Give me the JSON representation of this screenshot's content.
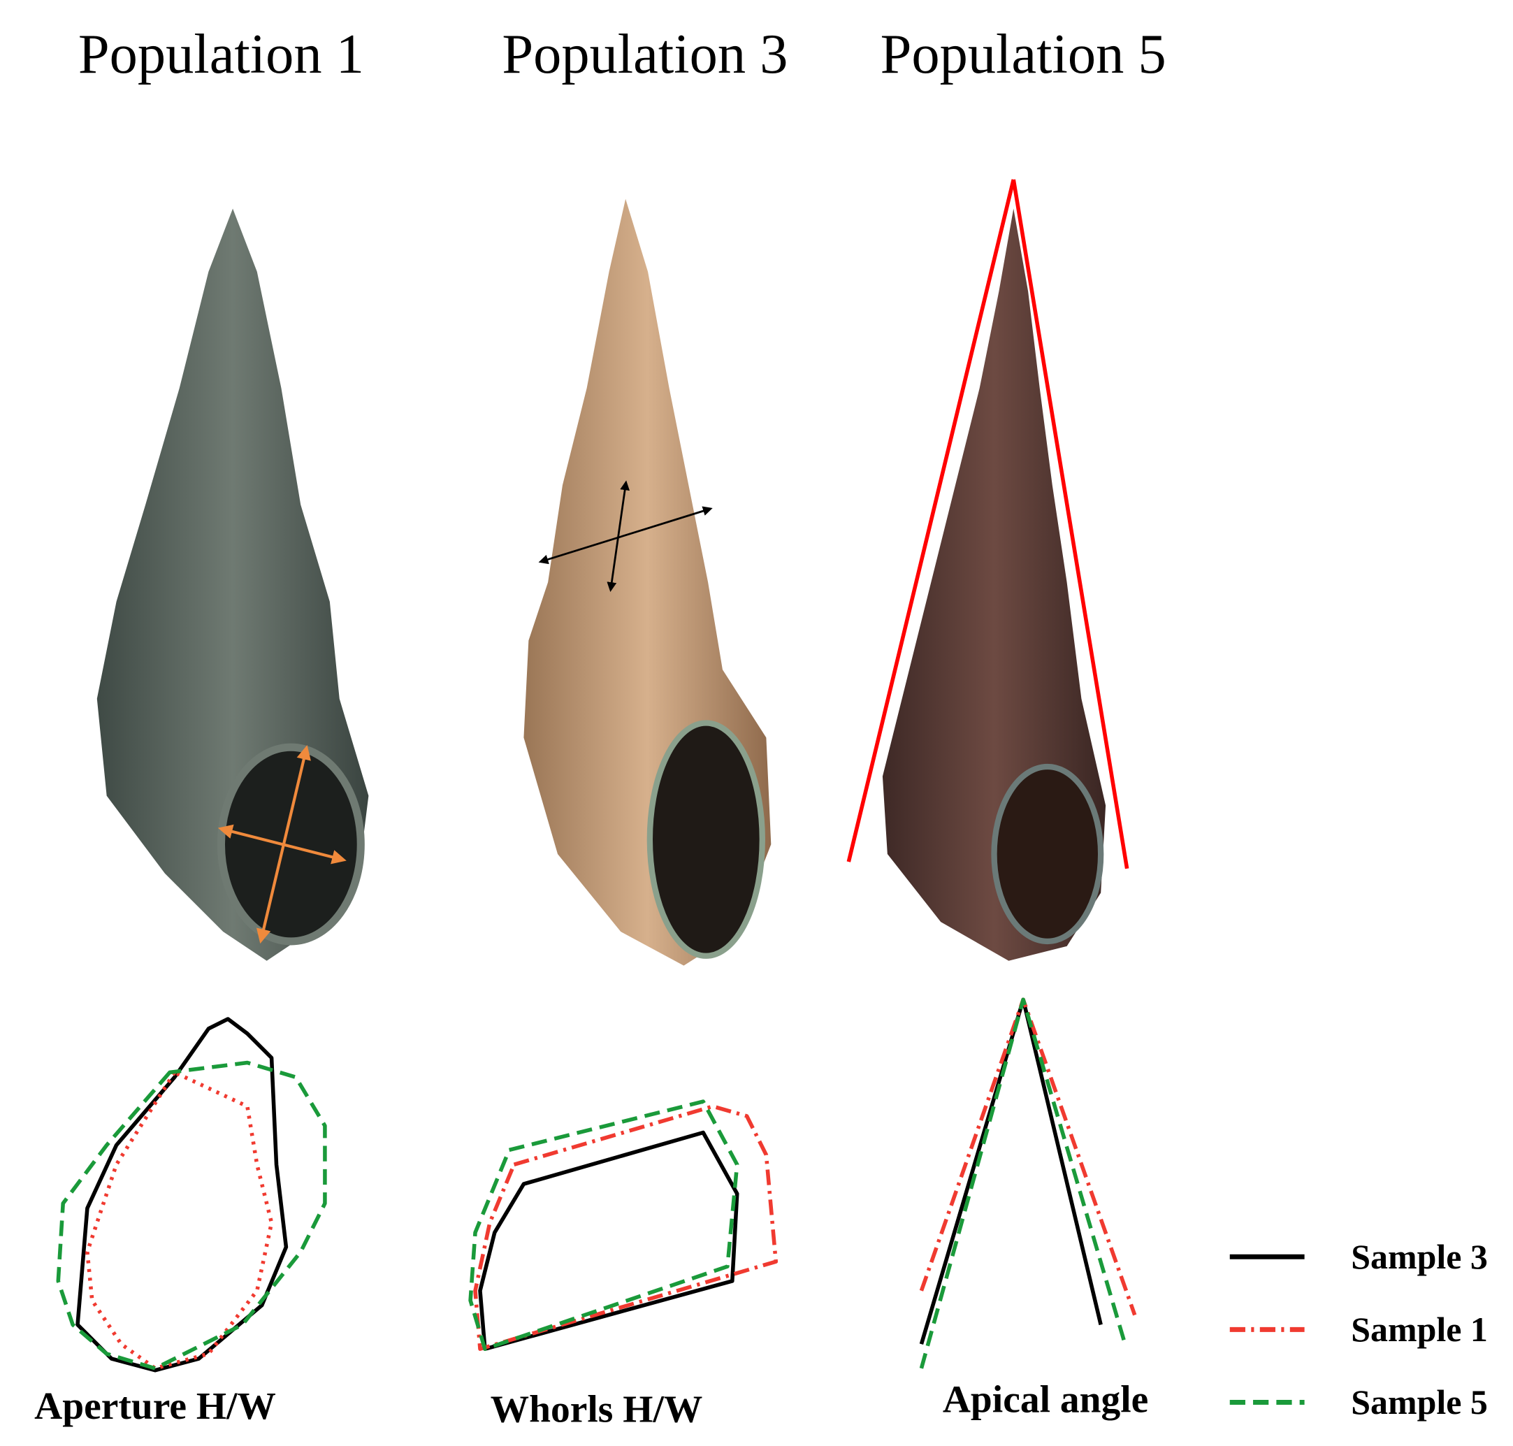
{
  "columns": [
    {
      "title": "Population 1",
      "label": "Aperture H/W"
    },
    {
      "title": "Population 3",
      "label": "Whorls H/W"
    },
    {
      "title": "Population 5",
      "label": "Apical angle"
    }
  ],
  "legend": [
    {
      "label": "Sample 3"
    },
    {
      "label": "Sample 1"
    },
    {
      "label": "Sample 5"
    }
  ]
}
